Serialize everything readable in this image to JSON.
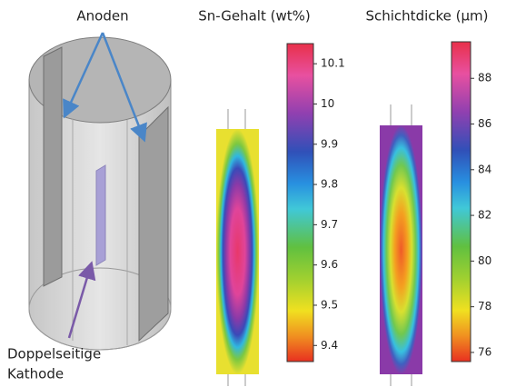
{
  "labels": {
    "anodes": "Anoden",
    "cathode_line1": "Doppelseitige",
    "cathode_line2": "Kathode"
  },
  "panels": [
    {
      "title": "Sn-Gehalt (wt%)",
      "lim": [
        9.36,
        10.15
      ],
      "ticks": [
        9.4,
        9.5,
        9.6,
        9.7,
        9.8,
        9.9,
        10,
        10.1
      ]
    },
    {
      "title": "Schichtdicke (µm)",
      "lim": [
        75.6,
        89.6
      ],
      "ticks": [
        76,
        78,
        80,
        82,
        84,
        86,
        88
      ]
    }
  ]
}
